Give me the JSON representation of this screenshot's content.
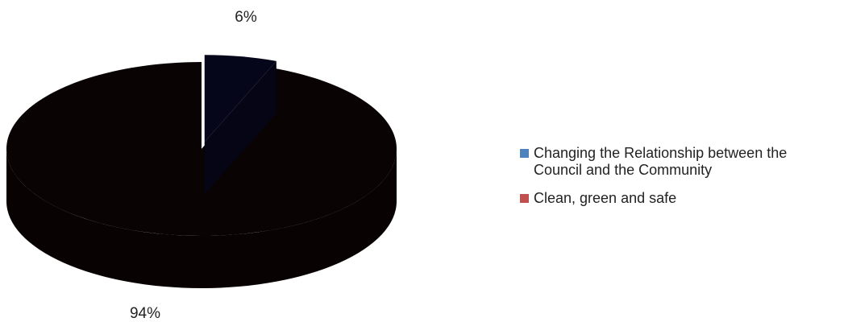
{
  "chart_data": {
    "type": "pie",
    "style": "3d-exploded",
    "title": "",
    "slices": [
      {
        "name": "Changing the Relationship between the Council and the Community",
        "value": 6,
        "label": "6%",
        "legend_color": "#4f81bd",
        "fill_color": "#06061a"
      },
      {
        "name": "Clean, green and safe",
        "value": 94,
        "label": "94%",
        "legend_color": "#c0504d",
        "fill_color": "#0a0303"
      }
    ],
    "legend_position": "right"
  }
}
